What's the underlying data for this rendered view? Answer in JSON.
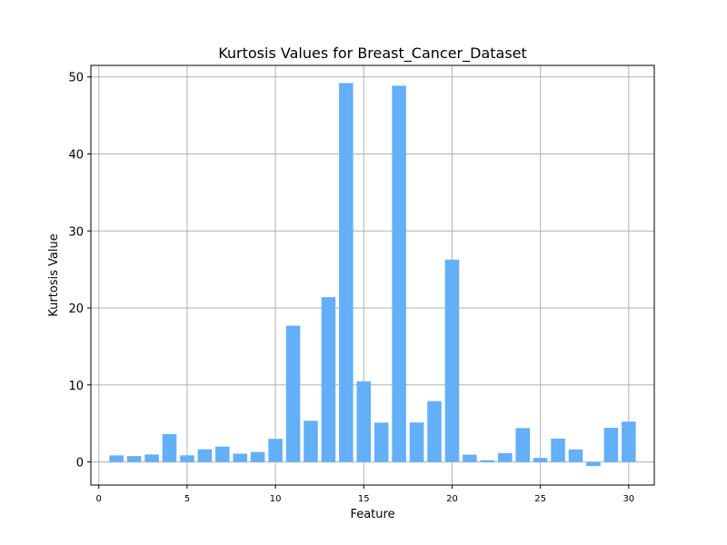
{
  "chart_data": {
    "type": "bar",
    "title": "Kurtosis Values for Breast_Cancer_Dataset",
    "xlabel": "Feature",
    "ylabel": "Kurtosis Value",
    "x": [
      1,
      2,
      3,
      4,
      5,
      6,
      7,
      8,
      9,
      10,
      11,
      12,
      13,
      14,
      15,
      16,
      17,
      18,
      19,
      20,
      21,
      22,
      23,
      24,
      25,
      26,
      27,
      28,
      29,
      30
    ],
    "values": [
      0.85,
      0.76,
      0.97,
      3.61,
      0.86,
      1.65,
      1.99,
      1.07,
      1.29,
      3.0,
      17.69,
      5.35,
      21.4,
      49.21,
      10.47,
      5.11,
      48.86,
      5.13,
      7.9,
      26.28,
      0.94,
      0.22,
      1.15,
      4.4,
      0.52,
      3.04,
      1.62,
      -0.54,
      4.44,
      5.24
    ],
    "xlim": [
      -0.45,
      31.45
    ],
    "ylim": [
      -3.0,
      51.5
    ],
    "xticks": [
      0,
      5,
      10,
      15,
      20,
      25,
      30
    ],
    "xtick_labels": [
      "0",
      "5",
      "10",
      "15",
      "20",
      "25",
      "30"
    ],
    "yticks": [
      0,
      10,
      20,
      30,
      40,
      50
    ],
    "ytick_labels": [
      "0",
      "10",
      "20",
      "30",
      "40",
      "50"
    ],
    "grid": true,
    "bar_color": "#63aff8",
    "grid_color": "#b0b0b0"
  }
}
